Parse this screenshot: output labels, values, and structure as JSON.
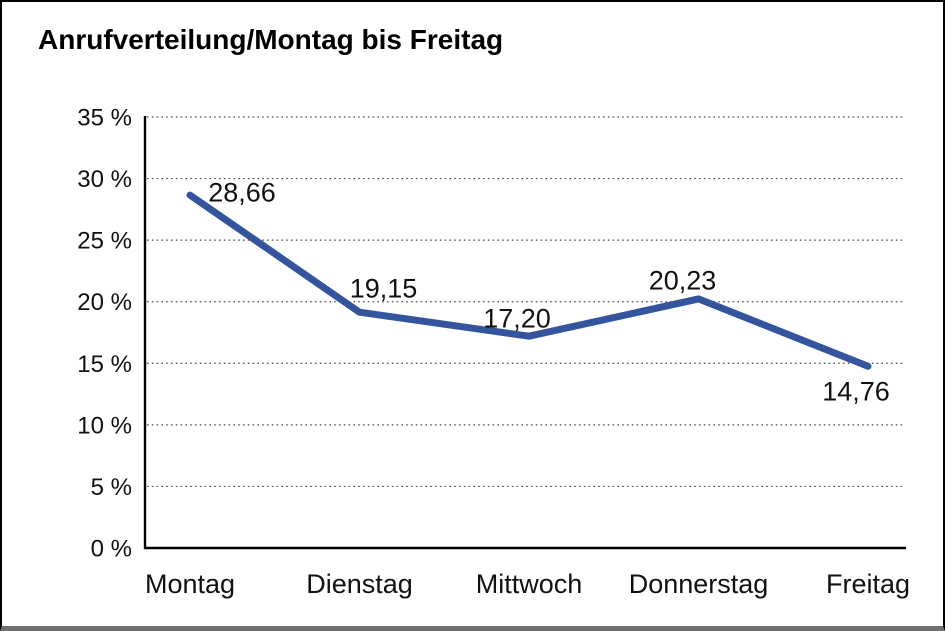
{
  "title": "Anrufverteilung/Montag bis Freitag",
  "chart_data": {
    "type": "line",
    "title": "Anrufverteilung/Montag bis Freitag",
    "categories": [
      "Montag",
      "Dienstag",
      "Mittwoch",
      "Donnerstag",
      "Freitag"
    ],
    "values": [
      28.66,
      19.15,
      17.2,
      20.23,
      14.76
    ],
    "value_labels": [
      "28,66",
      "19,15",
      "17,20",
      "20,23",
      "14,76"
    ],
    "series_name": "Anrufverteilung",
    "xlabel": "",
    "ylabel": "",
    "ylim": [
      0,
      35
    ],
    "ytick_step": 5,
    "ytick_labels": [
      "0 %",
      "5 %",
      "10 %",
      "15 %",
      "20 %",
      "25 %",
      "30 %",
      "35 %"
    ],
    "grid": "horizontal-dotted",
    "legend": "none",
    "line_color": "#34549E",
    "grid_color": "#4a4a4a",
    "axis_color": "#000000",
    "text_color": "#111111"
  }
}
